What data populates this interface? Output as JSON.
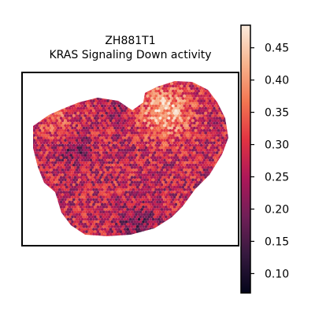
{
  "chart_data": {
    "type": "heatmap",
    "title_lines": [
      "ZH881T1",
      "KRAS Signaling Down activity"
    ],
    "xlabel": "",
    "ylabel": "",
    "colormap": "rocket",
    "color_range": [
      0.07,
      0.485
    ],
    "colorbar_ticks": [
      {
        "value": 0.45,
        "label": "0.45"
      },
      {
        "value": 0.4,
        "label": "0.40"
      },
      {
        "value": 0.35,
        "label": "0.35"
      },
      {
        "value": 0.3,
        "label": "0.30"
      },
      {
        "value": 0.25,
        "label": "0.25"
      },
      {
        "value": 0.2,
        "label": "0.20"
      },
      {
        "value": 0.15,
        "label": "0.15"
      },
      {
        "value": 0.1,
        "label": "0.10"
      }
    ],
    "color_stops": [
      "#03051a",
      "#35193e",
      "#701f57",
      "#ad1759",
      "#e13342",
      "#f37651",
      "#f6b48e",
      "#faebdd"
    ],
    "spots_note_regions": [
      {
        "region": "upper-right lobe",
        "value": 0.42
      },
      {
        "region": "left upper edge",
        "value": 0.36
      },
      {
        "region": "center",
        "value": 0.26
      },
      {
        "region": "dark seams",
        "value": 0.14
      }
    ]
  }
}
